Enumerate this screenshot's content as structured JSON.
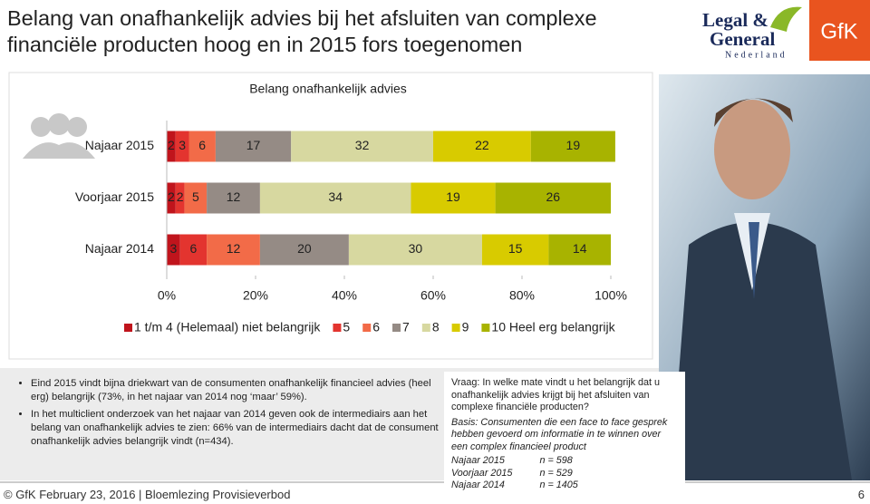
{
  "header": {
    "title": "Belang van onafhankelijk advies bij het afsluiten van complexe financiële producten hoog en in 2015 fors toegenomen",
    "logo_lg": [
      "Legal &",
      "General",
      "Nederland"
    ],
    "logo_gfk": "GfK"
  },
  "chart_data": {
    "type": "stacked-bar-horizontal",
    "title": "Belang onafhankelijk advies",
    "categories": [
      "Najaar 2015",
      "Voorjaar 2015",
      "Najaar 2014"
    ],
    "series": [
      {
        "name": "1 t/m 4 (Helemaal) niet belangrijk",
        "color": "#c0141c",
        "values": [
          2,
          2,
          3
        ]
      },
      {
        "name": "5",
        "color": "#e3342f",
        "values": [
          3,
          2,
          6
        ]
      },
      {
        "name": "6",
        "color": "#f26b48",
        "values": [
          6,
          5,
          12
        ]
      },
      {
        "name": "7",
        "color": "#958b85",
        "values": [
          17,
          12,
          20
        ]
      },
      {
        "name": "8",
        "color": "#d7d8a0",
        "values": [
          32,
          34,
          30
        ]
      },
      {
        "name": "9",
        "color": "#d8cb00",
        "values": [
          22,
          19,
          15
        ]
      },
      {
        "name": "10 Heel erg belangrijk",
        "color": "#a8b300",
        "values": [
          19,
          26,
          14
        ]
      }
    ],
    "xlim": [
      0,
      100
    ],
    "xticks": [
      {
        "value": 0,
        "label": "0%"
      },
      {
        "value": 20,
        "label": "20%"
      },
      {
        "value": 40,
        "label": "40%"
      },
      {
        "value": 60,
        "label": "60%"
      },
      {
        "value": 80,
        "label": "80%"
      },
      {
        "value": 100,
        "label": "100%"
      }
    ],
    "legend": "bottom"
  },
  "bullets": [
    "Eind 2015 vindt bijna driekwart van de consumenten onafhankelijk financieel advies (heel erg) belangrijk (73%, in het najaar van 2014 nog ‘maar’ 59%).",
    "In het multiclient onderzoek van het najaar van 2014 geven ook de intermediairs aan het belang van onafhankelijk advies te zien: 66% van de intermediairs dacht dat de consument onafhankelijk advies belangrijk vindt (n=434)."
  ],
  "note": {
    "question": "Vraag: In welke mate vindt u het belangrijk dat u onafhankelijk advies krijgt bij het afsluiten van complexe financiële producten?",
    "basis": "Basis: Consumenten die een face to face gesprek hebben gevoerd om informatie in te winnen over een complex financieel product",
    "samples": [
      [
        "Najaar 2015",
        "n = 598"
      ],
      [
        "Voorjaar 2015",
        "n = 529"
      ],
      [
        "Najaar 2014",
        "n = 1405"
      ]
    ]
  },
  "footer": {
    "text": "© GfK February 23, 2016 | Bloemlezing Provisieverbod",
    "page": "6"
  }
}
